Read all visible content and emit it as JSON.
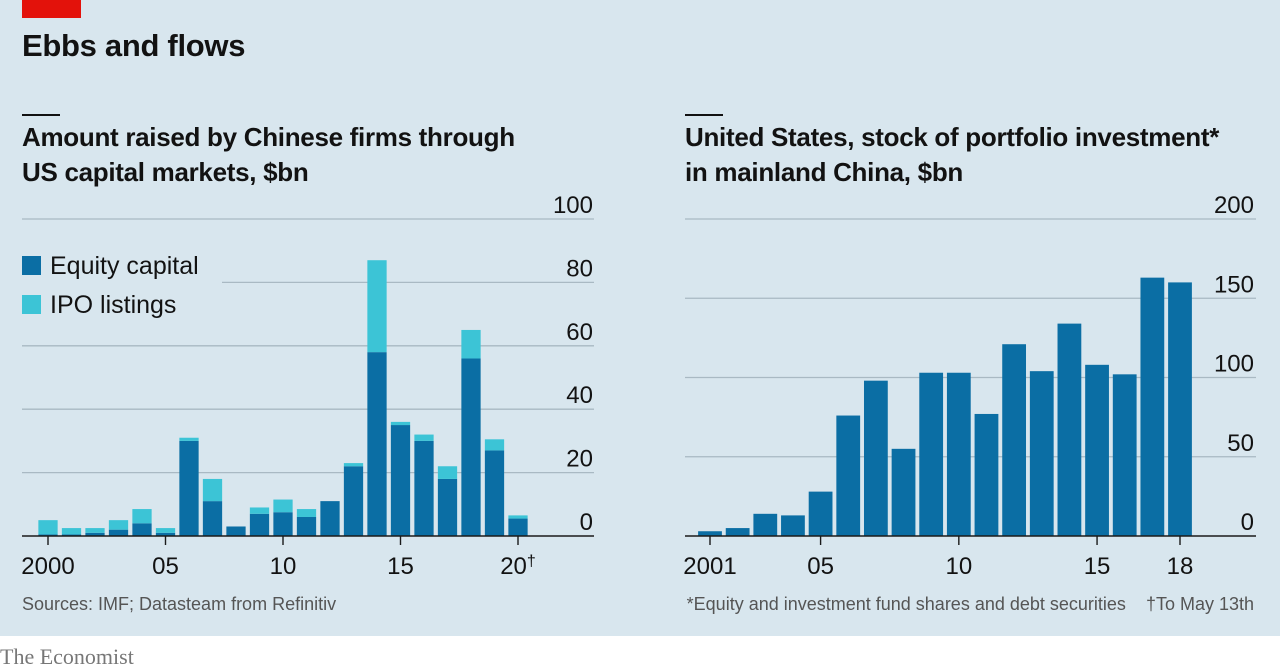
{
  "header": {
    "title": "Ebbs and flows"
  },
  "footer": {
    "source": "Sources: IMF; Datasteam from Refinitiv",
    "note_main": "*Equity and investment fund shares and debt securities",
    "note_dagger": "†To May 13th",
    "brand": "The Economist"
  },
  "colors": {
    "equity": "#0b6ea4",
    "ipo": "#3cc4d6",
    "grid": "#a9b9c3",
    "axis": "#1a1a1a"
  },
  "chart_data": [
    {
      "type": "bar",
      "stacked": true,
      "title_lines": [
        "Amount raised by Chinese firms through",
        "US capital markets, $bn"
      ],
      "x": [
        2000,
        2001,
        2002,
        2003,
        2004,
        2005,
        2006,
        2007,
        2008,
        2009,
        2010,
        2011,
        2012,
        2013,
        2014,
        2015,
        2016,
        2017,
        2018,
        2019,
        2020
      ],
      "series": [
        {
          "name": "Equity capital",
          "color": "#0b6ea4",
          "values": [
            0.5,
            0.5,
            1,
            2,
            4,
            1,
            30,
            11,
            3,
            7,
            7.5,
            6,
            11,
            22,
            58,
            35,
            30,
            18,
            56,
            27,
            5.5
          ]
        },
        {
          "name": "IPO listings",
          "color": "#3cc4d6",
          "values": [
            4.5,
            2,
            1.5,
            3,
            4.5,
            1.5,
            1,
            7,
            0,
            2,
            4,
            2.5,
            0,
            1,
            29,
            1,
            2,
            4,
            9,
            3.5,
            1
          ]
        }
      ],
      "ylim": [
        0,
        100
      ],
      "yticks": [
        0,
        20,
        40,
        60,
        80,
        100
      ],
      "xtick_labels": [
        {
          "x": 2000,
          "label": "2000"
        },
        {
          "x": 2005,
          "label": "05"
        },
        {
          "x": 2010,
          "label": "10"
        },
        {
          "x": 2015,
          "label": "15"
        },
        {
          "x": 2020,
          "label": "20",
          "suffix": "†"
        }
      ],
      "legend": "top-left",
      "grid": true
    },
    {
      "type": "bar",
      "title_lines": [
        "United States, stock of portfolio investment*",
        "in mainland China, $bn"
      ],
      "x": [
        2001,
        2002,
        2003,
        2004,
        2005,
        2006,
        2007,
        2008,
        2009,
        2010,
        2011,
        2012,
        2013,
        2014,
        2015,
        2016,
        2017,
        2018
      ],
      "series": [
        {
          "color": "#0b6ea4",
          "values": [
            3,
            5,
            14,
            13,
            28,
            76,
            98,
            55,
            103,
            103,
            77,
            121,
            104,
            134,
            108,
            102,
            163,
            160
          ]
        }
      ],
      "ylim": [
        0,
        200
      ],
      "yticks": [
        0,
        50,
        100,
        150,
        200
      ],
      "xtick_labels": [
        {
          "x": 2001,
          "label": "2001"
        },
        {
          "x": 2005,
          "label": "05"
        },
        {
          "x": 2010,
          "label": "10"
        },
        {
          "x": 2015,
          "label": "15"
        },
        {
          "x": 2018,
          "label": "18"
        }
      ],
      "grid": true
    }
  ]
}
